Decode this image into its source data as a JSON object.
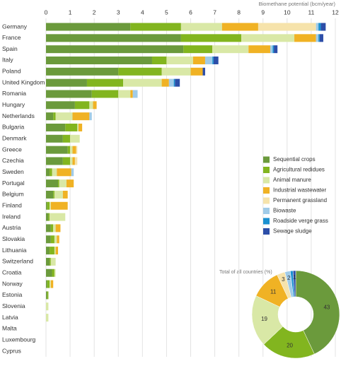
{
  "chart_data": [
    {
      "type": "stacked-barh",
      "x_label": "Biomethane potential (bcm/year)",
      "categories": [
        "Germany",
        "France",
        "Spain",
        "Italy",
        "Poland",
        "United Kingdom",
        "Romania",
        "Hungary",
        "Netherlands",
        "Bulgaria",
        "Denmark",
        "Greece",
        "Czechia",
        "Sweden",
        "Portugal",
        "Belgium",
        "Finland",
        "Ireland",
        "Austria",
        "Slovakia",
        "Lithuania",
        "Switzerland",
        "Croatia",
        "Norway",
        "Estonia",
        "Slovenia",
        "Latvia",
        "Malta",
        "Luxembourg",
        "Cyprus"
      ],
      "xlim": [
        0,
        12
      ],
      "xticks": [
        0,
        1,
        2,
        3,
        4,
        5,
        6,
        7,
        8,
        9,
        10,
        11,
        12
      ],
      "grid": true,
      "series": [
        {
          "name": "Sequential crops",
          "color": "#6b9a3c",
          "values": [
            3.5,
            5.6,
            5.7,
            4.4,
            3.0,
            1.7,
            1.9,
            1.2,
            0.3,
            0.8,
            0.7,
            0.9,
            0.7,
            0.15,
            0.5,
            0.3,
            0.05,
            0.1,
            0.2,
            0.2,
            0.15,
            0.15,
            0.25,
            0.05,
            0.05,
            0,
            0,
            0,
            0,
            0
          ]
        },
        {
          "name": "Agricultural redidues",
          "color": "#82b51f",
          "values": [
            2.1,
            2.5,
            1.2,
            0.6,
            1.8,
            1.5,
            1.1,
            0.6,
            0.1,
            0.5,
            0.3,
            0.1,
            0.3,
            0.1,
            0.05,
            0.05,
            0.1,
            0.05,
            0.1,
            0.15,
            0.2,
            0.05,
            0.1,
            0.1,
            0.05,
            0,
            0,
            0,
            0,
            0
          ]
        },
        {
          "name": "Animal manure",
          "color": "#d9e8a6",
          "values": [
            1.7,
            2.2,
            1.5,
            1.1,
            1.2,
            1.6,
            0.5,
            0.15,
            0.7,
            0.05,
            0.4,
            0.1,
            0.1,
            0.2,
            0.3,
            0.35,
            0.05,
            0.65,
            0.1,
            0.1,
            0.05,
            0.2,
            0.05,
            0.05,
            0,
            0.1,
            0.1,
            0,
            0,
            0
          ]
        },
        {
          "name": "Industrial wastewater",
          "color": "#f0b224",
          "values": [
            1.5,
            0.9,
            0.9,
            0.5,
            0.5,
            0.3,
            0.1,
            0.15,
            0.7,
            0.15,
            0,
            0.15,
            0.1,
            0.6,
            0.3,
            0.2,
            0.7,
            0,
            0.2,
            0.1,
            0.1,
            0,
            0,
            0.1,
            0,
            0,
            0,
            0,
            0,
            0
          ]
        },
        {
          "name": "Permanent grassland",
          "color": "#f6e3ab",
          "values": [
            2.4,
            0,
            0,
            0,
            0,
            0,
            0,
            0,
            0,
            0,
            0,
            0.05,
            0.1,
            0,
            0,
            0,
            0,
            0,
            0,
            0,
            0,
            0,
            0,
            0,
            0,
            0,
            0,
            0,
            0,
            0
          ]
        },
        {
          "name": "Biowaste",
          "color": "#a0cbe8",
          "values": [
            0.1,
            0.1,
            0.1,
            0.3,
            0,
            0.2,
            0.2,
            0,
            0.1,
            0,
            0,
            0,
            0,
            0.1,
            0,
            0,
            0,
            0,
            0,
            0,
            0,
            0,
            0,
            0,
            0,
            0,
            0,
            0,
            0,
            0
          ]
        },
        {
          "name": "Roadside verge grass",
          "color": "#1b90d0",
          "values": [
            0.1,
            0.05,
            0.05,
            0.05,
            0,
            0.05,
            0,
            0,
            0,
            0,
            0,
            0,
            0,
            0,
            0,
            0,
            0,
            0,
            0,
            0,
            0,
            0,
            0,
            0,
            0,
            0,
            0,
            0,
            0,
            0
          ]
        },
        {
          "name": "Sewage sludge",
          "color": "#2c4ea8",
          "values": [
            0.2,
            0.15,
            0.15,
            0.2,
            0.1,
            0.2,
            0,
            0,
            0,
            0,
            0,
            0,
            0,
            0,
            0,
            0,
            0,
            0,
            0,
            0,
            0,
            0,
            0,
            0,
            0,
            0,
            0,
            0,
            0,
            0
          ]
        }
      ]
    },
    {
      "type": "donut",
      "title": "Total of all countries (%)",
      "values": [
        43,
        20,
        19,
        11,
        3,
        2,
        1,
        1
      ],
      "value_labels": [
        "43",
        "20",
        "19",
        "11",
        "3",
        "2",
        null,
        "1"
      ],
      "colors": [
        "#6b9a3c",
        "#82b51f",
        "#d9e8a6",
        "#f0b224",
        "#f6e3ab",
        "#a0cbe8",
        "#1b90d0",
        "#2c4ea8"
      ]
    }
  ]
}
